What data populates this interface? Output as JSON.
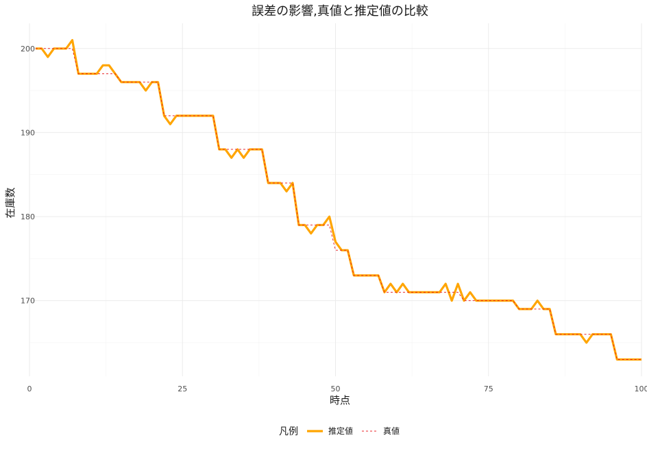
{
  "chart_data": {
    "type": "line",
    "title": "誤差の影響,真値と推定値の比較",
    "xlabel": "時点",
    "ylabel": "在庫数",
    "xlim": [
      0,
      100
    ],
    "ylim": [
      161,
      203
    ],
    "x_ticks": [
      0,
      25,
      50,
      75,
      100
    ],
    "y_ticks": [
      170,
      180,
      190,
      200
    ],
    "grid": true,
    "legend": {
      "title": "凡例",
      "position": "bottom",
      "items": [
        {
          "label": "推定値",
          "color": "#FFA500",
          "style": "solid"
        },
        {
          "label": "真値",
          "color": "#E8262A",
          "style": "dashed"
        }
      ]
    },
    "x": [
      1,
      2,
      3,
      4,
      5,
      6,
      7,
      8,
      9,
      10,
      11,
      12,
      13,
      14,
      15,
      16,
      17,
      18,
      19,
      20,
      21,
      22,
      23,
      24,
      25,
      26,
      27,
      28,
      29,
      30,
      31,
      32,
      33,
      34,
      35,
      36,
      37,
      38,
      39,
      40,
      41,
      42,
      43,
      44,
      45,
      46,
      47,
      48,
      49,
      50,
      51,
      52,
      53,
      54,
      55,
      56,
      57,
      58,
      59,
      60,
      61,
      62,
      63,
      64,
      65,
      66,
      67,
      68,
      69,
      70,
      71,
      72,
      73,
      74,
      75,
      76,
      77,
      78,
      79,
      80,
      81,
      82,
      83,
      84,
      85,
      86,
      87,
      88,
      89,
      90,
      91,
      92,
      93,
      94,
      95,
      96,
      97,
      98,
      99,
      100
    ],
    "series": [
      {
        "name": "推定値",
        "color": "#FFA500",
        "values": [
          200,
          200,
          199,
          200,
          200,
          200,
          201,
          197,
          197,
          197,
          197,
          198,
          198,
          197,
          196,
          196,
          196,
          196,
          195,
          196,
          196,
          192,
          191,
          192,
          192,
          192,
          192,
          192,
          192,
          192,
          188,
          188,
          187,
          188,
          187,
          188,
          188,
          188,
          184,
          184,
          184,
          183,
          184,
          179,
          179,
          178,
          179,
          179,
          180,
          177,
          176,
          176,
          173,
          173,
          173,
          173,
          173,
          171,
          172,
          171,
          172,
          171,
          171,
          171,
          171,
          171,
          171,
          172,
          170,
          172,
          170,
          171,
          170,
          170,
          170,
          170,
          170,
          170,
          170,
          169,
          169,
          169,
          170,
          169,
          169,
          166,
          166,
          166,
          166,
          166,
          165,
          166,
          166,
          166,
          166,
          163,
          163,
          163,
          163,
          163
        ]
      },
      {
        "name": "真値",
        "color": "#E8262A",
        "values": [
          200,
          200,
          200,
          200,
          200,
          200,
          200,
          197,
          197,
          197,
          197,
          197,
          197,
          197,
          196,
          196,
          196,
          196,
          196,
          196,
          196,
          192,
          192,
          192,
          192,
          192,
          192,
          192,
          192,
          192,
          188,
          188,
          188,
          188,
          188,
          188,
          188,
          188,
          184,
          184,
          184,
          184,
          184,
          179,
          179,
          179,
          179,
          179,
          179,
          176,
          176,
          176,
          173,
          173,
          173,
          173,
          173,
          171,
          171,
          171,
          171,
          171,
          171,
          171,
          171,
          171,
          171,
          171,
          171,
          171,
          170,
          170,
          170,
          170,
          170,
          170,
          170,
          170,
          170,
          169,
          169,
          169,
          169,
          169,
          169,
          166,
          166,
          166,
          166,
          166,
          166,
          166,
          166,
          166,
          166,
          163,
          163,
          163,
          163,
          163
        ]
      }
    ]
  }
}
